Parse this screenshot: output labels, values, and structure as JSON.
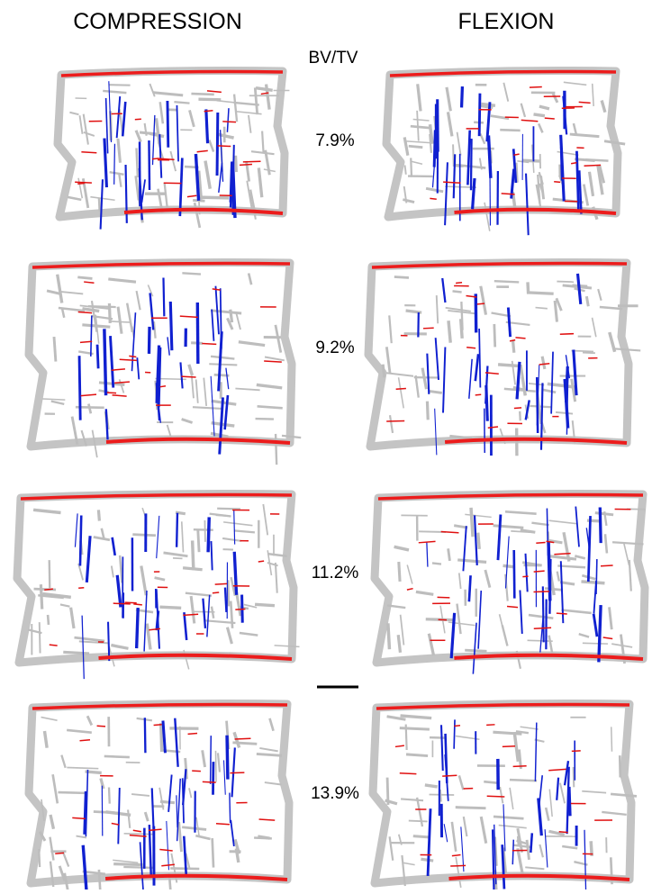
{
  "columns": [
    "COMPRESSION",
    "FLEXION"
  ],
  "measure_label": "BV/TV",
  "rows": [
    "7.9%",
    "9.2%",
    "11.2%",
    "13.9%"
  ]
}
